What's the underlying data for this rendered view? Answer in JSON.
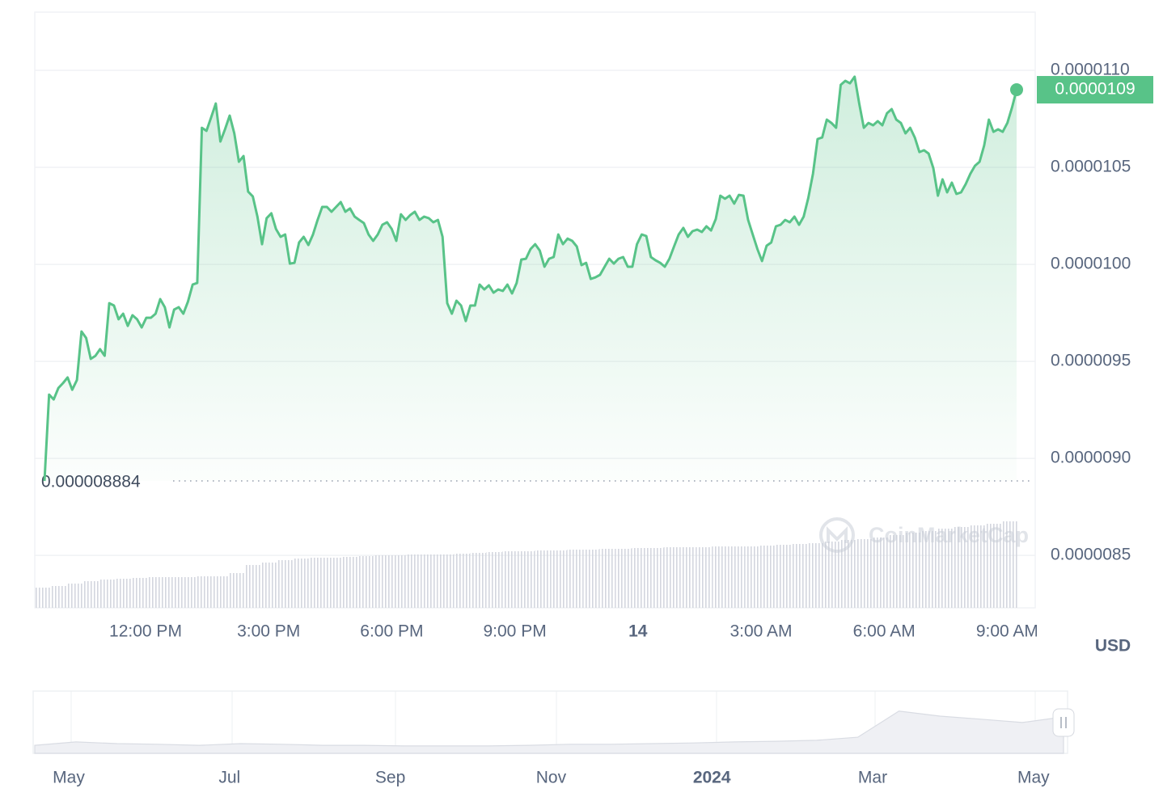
{
  "chart_data": [
    {
      "type": "line",
      "color": "#58c388",
      "values": [
        8.884e-06,
        9.329e-06,
        9.304e-06,
        9.363e-06,
        9.388e-06,
        9.417e-06,
        9.354e-06,
        9.404e-06,
        9.654e-06,
        9.621e-06,
        9.513e-06,
        9.529e-06,
        9.563e-06,
        9.529e-06,
        9.8e-06,
        9.788e-06,
        9.717e-06,
        9.746e-06,
        9.683e-06,
        9.738e-06,
        9.717e-06,
        9.675e-06,
        9.725e-06,
        9.725e-06,
        9.746e-06,
        9.821e-06,
        9.779e-06,
        9.675e-06,
        9.767e-06,
        9.779e-06,
        9.746e-06,
        9.808e-06,
        9.896e-06,
        9.904e-06,
        1.0704e-05,
        1.0688e-05,
        1.0758e-05,
        1.0829e-05,
        1.0633e-05,
        1.0696e-05,
        1.0767e-05,
        1.0675e-05,
        1.0529e-05,
        1.0558e-05,
        1.0375e-05,
        1.035e-05,
        1.0246e-05,
        1.0104e-05,
        1.0238e-05,
        1.0263e-05,
        1.0183e-05,
        1.0142e-05,
        1.0154e-05,
        1.0004e-05,
        1.0008e-05,
        1.0113e-05,
        1.0142e-05,
        1.01e-05,
        1.0154e-05,
        1.0229e-05,
        1.0296e-05,
        1.0296e-05,
        1.0271e-05,
        1.0296e-05,
        1.0321e-05,
        1.0271e-05,
        1.0288e-05,
        1.0246e-05,
        1.0229e-05,
        1.0213e-05,
        1.0154e-05,
        1.0121e-05,
        1.0154e-05,
        1.0204e-05,
        1.0217e-05,
        1.0183e-05,
        1.0121e-05,
        1.0258e-05,
        1.0229e-05,
        1.0254e-05,
        1.0271e-05,
        1.0229e-05,
        1.0246e-05,
        1.0238e-05,
        1.0217e-05,
        1.0229e-05,
        1.0142e-05,
        9.8e-06,
        9.746e-06,
        9.813e-06,
        9.788e-06,
        9.708e-06,
        9.788e-06,
        9.788e-06,
        9.896e-06,
        9.871e-06,
        9.892e-06,
        9.854e-06,
        9.871e-06,
        9.863e-06,
        9.896e-06,
        9.85e-06,
        9.904e-06,
        1.0025e-05,
        1.0029e-05,
        1.0079e-05,
        1.0104e-05,
        1.0071e-05,
        9.988e-06,
        1.0029e-05,
        1.0038e-05,
        1.0154e-05,
        1.0104e-05,
        1.0133e-05,
        1.0121e-05,
        1.0092e-05,
        9.996e-06,
        1.0008e-05,
        9.925e-06,
        9.933e-06,
        9.946e-06,
        9.988e-06,
        1.0029e-05,
        1.0004e-05,
        1.0029e-05,
        1.0038e-05,
        9.988e-06,
        9.988e-06,
        1.0104e-05,
        1.0154e-05,
        1.0146e-05,
        1.0038e-05,
        1.0021e-05,
        1.0008e-05,
        9.988e-06,
        1.0029e-05,
        1.0092e-05,
        1.0154e-05,
        1.0188e-05,
        1.0142e-05,
        1.0171e-05,
        1.0179e-05,
        1.0167e-05,
        1.0196e-05,
        1.0175e-05,
        1.0233e-05,
        1.0354e-05,
        1.0338e-05,
        1.0354e-05,
        1.0313e-05,
        1.0358e-05,
        1.0354e-05,
        1.0229e-05,
        1.0154e-05,
        1.0079e-05,
        1.0017e-05,
        1.0096e-05,
        1.0113e-05,
        1.0196e-05,
        1.0204e-05,
        1.0229e-05,
        1.0217e-05,
        1.0246e-05,
        1.0204e-05,
        1.0246e-05,
        1.0342e-05,
        1.0467e-05,
        1.0646e-05,
        1.0654e-05,
        1.0746e-05,
        1.0729e-05,
        1.0704e-05,
        1.0925e-05,
        1.0946e-05,
        1.0933e-05,
        1.0967e-05,
        1.0829e-05,
        1.0704e-05,
        1.0729e-05,
        1.0717e-05,
        1.0738e-05,
        1.0717e-05,
        1.0779e-05,
        1.08e-05,
        1.0746e-05,
        1.0729e-05,
        1.0675e-05,
        1.0704e-05,
        1.0654e-05,
        1.0579e-05,
        1.0588e-05,
        1.0571e-05,
        1.0496e-05,
        1.0354e-05,
        1.0438e-05,
        1.0371e-05,
        1.0421e-05,
        1.0363e-05,
        1.0371e-05,
        1.0413e-05,
        1.0467e-05,
        1.0508e-05,
        1.0529e-05,
        1.0613e-05,
        1.0746e-05,
        1.0683e-05,
        1.0696e-05,
        1.0683e-05,
        1.0729e-05,
        1.0808e-05,
        1.09e-05
      ],
      "ylim": [
        8.23e-06,
        1.13e-05
      ],
      "yticks": [
        8.5e-06,
        {
          "value": 9e-06,
          "label": "0.0000090"
        },
        9.5e-06,
        {
          "value": 1e-05,
          "label": "0.0000100"
        },
        1.05e-05,
        {
          "value": 1.1e-05,
          "label": "0.0000110"
        }
      ],
      "grid": true,
      "x_tick_labels": [
        "12:00 PM",
        "3:00 PM",
        "6:00 PM",
        "9:00 PM",
        "14",
        "3:00 AM",
        "6:00 AM",
        "9:00 AM"
      ],
      "min_label": {
        "value": 8.884e-06,
        "label": "0.000008884"
      },
      "last_label": {
        "value": 1.09e-05,
        "label": "0.0000109"
      },
      "currency": "USD",
      "watermark": "CoinMarketCap"
    },
    {
      "type": "bar",
      "color": "#d3d6de",
      "values": [
        25,
        27,
        30,
        33,
        35,
        36,
        37,
        38,
        38,
        38,
        39,
        39,
        43,
        53,
        56,
        59,
        61,
        62,
        62,
        63,
        64,
        65,
        65,
        66,
        66,
        66,
        67,
        68,
        69,
        70,
        70,
        71,
        71,
        72,
        72,
        73,
        73,
        74,
        74,
        75,
        75,
        75,
        76,
        76,
        76,
        77,
        78,
        79,
        80,
        82,
        84,
        85,
        87,
        90,
        93,
        95,
        98,
        100,
        102,
        104,
        107
      ]
    },
    {
      "type": "area",
      "color": "#d9dce3",
      "values": [
        2.4e-06,
        3.4e-06,
        2.9e-06,
        2.7e-06,
        2.4e-06,
        2.9e-06,
        2.7e-06,
        2.4e-06,
        2.4e-06,
        2.2e-06,
        2.2e-06,
        2.2e-06,
        2.4e-06,
        2.7e-06,
        2.7e-06,
        2.9e-06,
        3.1e-06,
        3.4e-06,
        3.6e-06,
        3.9e-06,
        4.8e-06,
        1.26e-05,
        1.11e-05,
        1.02e-05,
        9.2e-06,
        1.09e-05
      ],
      "ylim": [
        0,
        1.86e-05
      ],
      "x_tick_labels": [
        "May",
        "Jul",
        "Sep",
        "Nov",
        "2024",
        "Mar",
        "May"
      ]
    }
  ]
}
